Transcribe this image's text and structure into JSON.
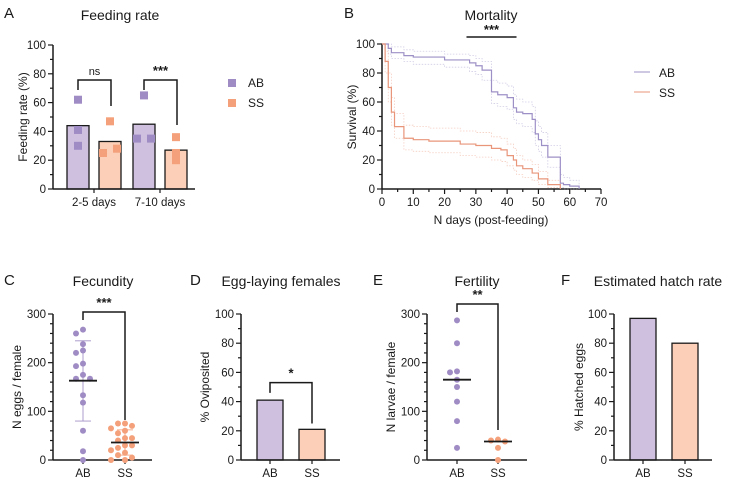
{
  "colors": {
    "ab_fill": "#cfc0e0",
    "ab_point": "#a08cc4",
    "ab_line": "#9d90c6",
    "ss_fill": "#fccfb8",
    "ss_point": "#f4a07a",
    "ss_line": "#e8957a",
    "axis": "#1a1a1a"
  },
  "chart_data": [
    {
      "panel": "A",
      "type": "bar",
      "title": "Feeding rate",
      "xlabel": "",
      "ylabel": "Feeding rate (%)",
      "ylim": [
        0,
        100
      ],
      "yticks": [
        0,
        20,
        40,
        60,
        80,
        100
      ],
      "categories": [
        "2-5 days",
        "7-10 days"
      ],
      "series": [
        {
          "name": "AB",
          "values": [
            44,
            45
          ],
          "points": [
            [
              62,
              41,
              30
            ],
            [
              65,
              35,
              35
            ]
          ]
        },
        {
          "name": "SS",
          "values": [
            33,
            27
          ],
          "points": [
            [
              47,
              25,
              28
            ],
            [
              36,
              25,
              20
            ]
          ]
        }
      ],
      "significance": [
        "ns",
        "***"
      ],
      "legend": {
        "entries": [
          "AB",
          "SS"
        ],
        "marker": "square",
        "placement": "right"
      }
    },
    {
      "panel": "B",
      "type": "line",
      "title": "Mortality",
      "xlabel": "N days (post-feeding)",
      "ylabel": "Survival (%)",
      "xlim": [
        0,
        70
      ],
      "ylim": [
        0,
        100
      ],
      "xticks": [
        0,
        10,
        20,
        30,
        40,
        50,
        60,
        70
      ],
      "yticks": [
        0,
        20,
        40,
        60,
        80,
        100
      ],
      "significance": "***",
      "significance_span": [
        27,
        43
      ],
      "legend": {
        "entries": [
          "AB",
          "SS"
        ],
        "marker": "line",
        "placement": "right"
      },
      "series": [
        {
          "name": "AB",
          "x": [
            0,
            2,
            3,
            7,
            10,
            20,
            28,
            30,
            32,
            35,
            37,
            40,
            42,
            43,
            45,
            48,
            49,
            50,
            51,
            53,
            57,
            58,
            60,
            63
          ],
          "y": [
            100,
            97,
            94,
            92,
            91,
            89,
            87,
            85,
            82,
            67,
            65,
            63,
            56,
            53,
            52,
            48,
            38,
            34,
            30,
            22,
            4,
            3,
            2,
            0
          ],
          "ci_upper": [
            100,
            100,
            98,
            96,
            95,
            93,
            92,
            90,
            88,
            75,
            73,
            71,
            65,
            62,
            60,
            57,
            47,
            43,
            39,
            30,
            10,
            8,
            6,
            0
          ],
          "ci_lower": [
            100,
            93,
            90,
            88,
            86,
            84,
            81,
            79,
            75,
            59,
            57,
            55,
            48,
            45,
            43,
            39,
            30,
            26,
            22,
            15,
            1,
            0,
            0,
            0
          ]
        },
        {
          "name": "SS",
          "x": [
            0,
            1,
            2,
            3,
            4,
            7,
            10,
            15,
            25,
            30,
            35,
            38,
            40,
            42,
            43,
            45,
            48,
            50,
            53,
            57
          ],
          "y": [
            100,
            88,
            70,
            53,
            43,
            35,
            34,
            33,
            31,
            30,
            28,
            27,
            23,
            20,
            16,
            14,
            11,
            7,
            3,
            0
          ],
          "ci_upper": [
            100,
            95,
            80,
            63,
            52,
            44,
            43,
            42,
            40,
            39,
            36,
            35,
            31,
            28,
            23,
            20,
            17,
            12,
            6,
            0
          ],
          "ci_lower": [
            100,
            80,
            60,
            44,
            35,
            27,
            26,
            25,
            23,
            22,
            20,
            19,
            16,
            13,
            10,
            8,
            6,
            3,
            1,
            0
          ]
        }
      ]
    },
    {
      "panel": "C",
      "type": "scatter",
      "title": "Fecundity",
      "xlabel": "",
      "ylabel": "N eggs / female",
      "ylim": [
        0,
        300
      ],
      "yticks": [
        0,
        100,
        200,
        300
      ],
      "categories": [
        "AB",
        "SS"
      ],
      "significance": "***",
      "series": [
        {
          "name": "AB",
          "points": [
            268,
            260,
            238,
            225,
            220,
            198,
            193,
            175,
            167,
            167,
            133,
            118,
            60,
            18,
            0
          ],
          "mean": 163,
          "sd_upper": 245,
          "sd_lower": 80
        },
        {
          "name": "SS",
          "points": [
            75,
            75,
            70,
            65,
            60,
            55,
            45,
            45,
            40,
            30,
            30,
            25,
            20,
            15,
            10,
            5,
            0,
            0
          ],
          "mean": 36,
          "sd_upper": 62,
          "sd_lower": 10
        }
      ]
    },
    {
      "panel": "D",
      "type": "bar",
      "title": "Egg-laying females",
      "xlabel": "",
      "ylabel": "% Oviposited",
      "ylim": [
        0,
        100
      ],
      "yticks": [
        0,
        20,
        40,
        60,
        80,
        100
      ],
      "categories": [
        "AB",
        "SS"
      ],
      "values": [
        41,
        21
      ],
      "significance": "*"
    },
    {
      "panel": "E",
      "type": "scatter",
      "title": "Fertility",
      "xlabel": "",
      "ylabel": "N larvae / female",
      "ylim": [
        0,
        300
      ],
      "yticks": [
        0,
        100,
        200,
        300
      ],
      "categories": [
        "AB",
        "SS"
      ],
      "significance": "**",
      "series": [
        {
          "name": "AB",
          "points": [
            287,
            240,
            182,
            180,
            165,
            150,
            120,
            80,
            25
          ],
          "median": 165
        },
        {
          "name": "SS",
          "points": [
            42,
            40,
            38,
            25,
            0
          ],
          "median": 38
        }
      ]
    },
    {
      "panel": "F",
      "type": "bar",
      "title": "Estimated hatch rate",
      "xlabel": "",
      "ylabel": "% Hatched eggs",
      "ylim": [
        0,
        100
      ],
      "yticks": [
        0,
        20,
        40,
        60,
        80,
        100
      ],
      "categories": [
        "AB",
        "SS"
      ],
      "values": [
        97,
        80
      ]
    }
  ]
}
